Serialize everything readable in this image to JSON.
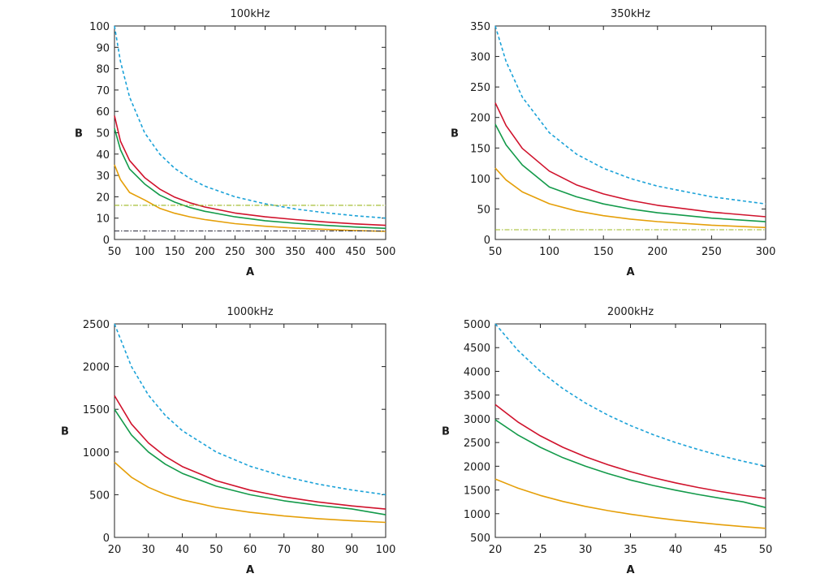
{
  "chart_data": [
    {
      "type": "line",
      "title": "100kHz",
      "xlabel": "A",
      "ylabel": "B",
      "xlim": [
        50,
        500
      ],
      "ylim": [
        0,
        100
      ],
      "xticks": [
        "50",
        "100",
        "150",
        "200",
        "250",
        "300",
        "350",
        "400",
        "450",
        "500"
      ],
      "yticks": [
        "0",
        "10",
        "20",
        "30",
        "40",
        "50",
        "60",
        "70",
        "80",
        "90",
        "100"
      ],
      "grid": false,
      "series": [
        {
          "color": "#1ba2d8",
          "dash": true,
          "x": [
            50,
            60,
            75,
            100,
            125,
            150,
            175,
            200,
            250,
            300,
            350,
            400,
            450,
            500
          ],
          "y": [
            100,
            83.3,
            66.7,
            50,
            40,
            33.3,
            28.6,
            25,
            20,
            16.7,
            14.3,
            12.5,
            11.1,
            10
          ]
        },
        {
          "color": "#d0122c",
          "dash": false,
          "x": [
            50,
            60,
            75,
            100,
            125,
            150,
            175,
            200,
            250,
            300,
            350,
            400,
            450,
            500
          ],
          "y": [
            58,
            46,
            37,
            29,
            23.6,
            19.8,
            17.2,
            15.2,
            12.4,
            10.6,
            9.3,
            8.2,
            7.3,
            6.6
          ]
        },
        {
          "color": "#139a4a",
          "dash": false,
          "x": [
            50,
            60,
            75,
            100,
            125,
            150,
            175,
            200,
            250,
            300,
            350,
            400,
            450,
            500
          ],
          "y": [
            52,
            42,
            33,
            26,
            20.8,
            17.5,
            15,
            13.2,
            10.6,
            8.8,
            7.6,
            6.6,
            5.8,
            5.2
          ]
        },
        {
          "color": "#e59f08",
          "dash": false,
          "x": [
            50,
            60,
            75,
            100,
            125,
            150,
            175,
            200,
            250,
            300,
            350,
            400,
            450,
            500
          ],
          "y": [
            35,
            28,
            22,
            18.5,
            14.6,
            12.3,
            10.6,
            9.3,
            7.4,
            6.2,
            5.3,
            4.7,
            4.2,
            3.8
          ]
        },
        {
          "color": "#9cb820",
          "dash": "dashdot",
          "x": [
            50,
            500
          ],
          "y": [
            16,
            16
          ]
        },
        {
          "color": "#2c2c3c",
          "dash": "dashdot",
          "x": [
            50,
            500
          ],
          "y": [
            4,
            4
          ]
        }
      ]
    },
    {
      "type": "line",
      "title": "350kHz",
      "xlabel": "A",
      "ylabel": "B",
      "xlim": [
        50,
        300
      ],
      "ylim": [
        0,
        350
      ],
      "xticks": [
        "50",
        "100",
        "150",
        "200",
        "250",
        "300"
      ],
      "yticks": [
        "0",
        "50",
        "100",
        "150",
        "200",
        "250",
        "300",
        "350"
      ],
      "grid": false,
      "series": [
        {
          "color": "#1ba2d8",
          "dash": true,
          "x": [
            50,
            60,
            75,
            100,
            125,
            150,
            175,
            200,
            250,
            300
          ],
          "y": [
            350,
            291.7,
            233.3,
            175,
            140,
            116.7,
            100,
            87.5,
            70,
            58.3
          ]
        },
        {
          "color": "#d0122c",
          "dash": false,
          "x": [
            50,
            60,
            75,
            100,
            125,
            150,
            175,
            200,
            250,
            300
          ],
          "y": [
            224,
            186.7,
            149.3,
            112,
            89.6,
            74.7,
            64,
            56,
            44.8,
            37.3
          ]
        },
        {
          "color": "#139a4a",
          "dash": false,
          "x": [
            50,
            60,
            75,
            100,
            125,
            150,
            175,
            200,
            250,
            300
          ],
          "y": [
            189,
            155,
            122,
            86,
            70,
            58.3,
            50,
            43.8,
            35,
            29.2
          ]
        },
        {
          "color": "#e59f08",
          "dash": false,
          "x": [
            50,
            60,
            75,
            100,
            125,
            150,
            175,
            200,
            250,
            300
          ],
          "y": [
            117,
            97.5,
            78,
            58.5,
            46.8,
            39,
            33.4,
            29.3,
            23.4,
            19.5
          ]
        },
        {
          "color": "#9cb820",
          "dash": "dashdot",
          "x": [
            50,
            300
          ],
          "y": [
            16,
            16
          ]
        }
      ]
    },
    {
      "type": "line",
      "title": "1000kHz",
      "xlabel": "A",
      "ylabel": "B",
      "xlim": [
        20,
        100
      ],
      "ylim": [
        0,
        2500
      ],
      "xticks": [
        "20",
        "30",
        "40",
        "50",
        "60",
        "70",
        "80",
        "90",
        "100"
      ],
      "yticks": [
        "0",
        "500",
        "1000",
        "1500",
        "2000",
        "2500"
      ],
      "grid": false,
      "series": [
        {
          "color": "#1ba2d8",
          "dash": true,
          "x": [
            20,
            25,
            30,
            35,
            40,
            50,
            60,
            70,
            80,
            90,
            100
          ],
          "y": [
            2500,
            2000,
            1666.7,
            1428.6,
            1250,
            1000,
            833.3,
            714.3,
            625,
            555.6,
            500
          ]
        },
        {
          "color": "#d0122c",
          "dash": false,
          "x": [
            20,
            25,
            30,
            35,
            40,
            50,
            60,
            70,
            80,
            90,
            100
          ],
          "y": [
            1660,
            1328,
            1106.7,
            948.6,
            830,
            664,
            553.3,
            474.3,
            415,
            368.9,
            332
          ]
        },
        {
          "color": "#139a4a",
          "dash": false,
          "x": [
            20,
            25,
            30,
            35,
            40,
            50,
            60,
            70,
            80,
            90,
            100
          ],
          "y": [
            1500,
            1200,
            1000,
            857.1,
            750,
            600,
            500,
            428.6,
            375,
            333.3,
            265
          ]
        },
        {
          "color": "#e59f08",
          "dash": false,
          "x": [
            20,
            25,
            30,
            35,
            40,
            50,
            60,
            70,
            80,
            90,
            100
          ],
          "y": [
            880,
            704,
            586.7,
            502.9,
            440,
            352,
            293.3,
            251.4,
            220,
            195.6,
            176
          ]
        }
      ]
    },
    {
      "type": "line",
      "title": "2000kHz",
      "xlabel": "A",
      "ylabel": "B",
      "xlim": [
        20,
        50
      ],
      "ylim": [
        500,
        5000
      ],
      "xticks": [
        "20",
        "25",
        "30",
        "35",
        "40",
        "45",
        "50"
      ],
      "yticks": [
        "500",
        "1000",
        "1500",
        "2000",
        "2500",
        "3000",
        "3500",
        "4000",
        "4500",
        "5000"
      ],
      "grid": false,
      "series": [
        {
          "color": "#1ba2d8",
          "dash": true,
          "x": [
            20,
            22.5,
            25,
            27.5,
            30,
            32.5,
            35,
            37.5,
            40,
            42.5,
            45,
            47.5,
            50
          ],
          "y": [
            5000,
            4444,
            4000,
            3636,
            3333,
            3077,
            2857,
            2667,
            2500,
            2353,
            2222,
            2105,
            2000
          ]
        },
        {
          "color": "#d0122c",
          "dash": false,
          "x": [
            20,
            22.5,
            25,
            27.5,
            30,
            32.5,
            35,
            37.5,
            40,
            42.5,
            45,
            47.5,
            50
          ],
          "y": [
            3300,
            2933,
            2640,
            2400,
            2200,
            2031,
            1886,
            1760,
            1650,
            1553,
            1467,
            1389,
            1320
          ]
        },
        {
          "color": "#139a4a",
          "dash": false,
          "x": [
            20,
            22.5,
            25,
            27.5,
            30,
            32.5,
            35,
            37.5,
            40,
            42.5,
            45,
            47.5,
            50
          ],
          "y": [
            2980,
            2660,
            2400,
            2180,
            2000,
            1845,
            1710,
            1595,
            1495,
            1405,
            1325,
            1250,
            1130
          ]
        },
        {
          "color": "#e59f08",
          "dash": false,
          "x": [
            20,
            22.5,
            25,
            27.5,
            30,
            32.5,
            35,
            37.5,
            40,
            42.5,
            45,
            47.5,
            50
          ],
          "y": [
            1730,
            1538,
            1384,
            1258,
            1153,
            1065,
            989,
            923,
            865,
            814,
            769,
            728,
            692
          ]
        }
      ]
    }
  ]
}
